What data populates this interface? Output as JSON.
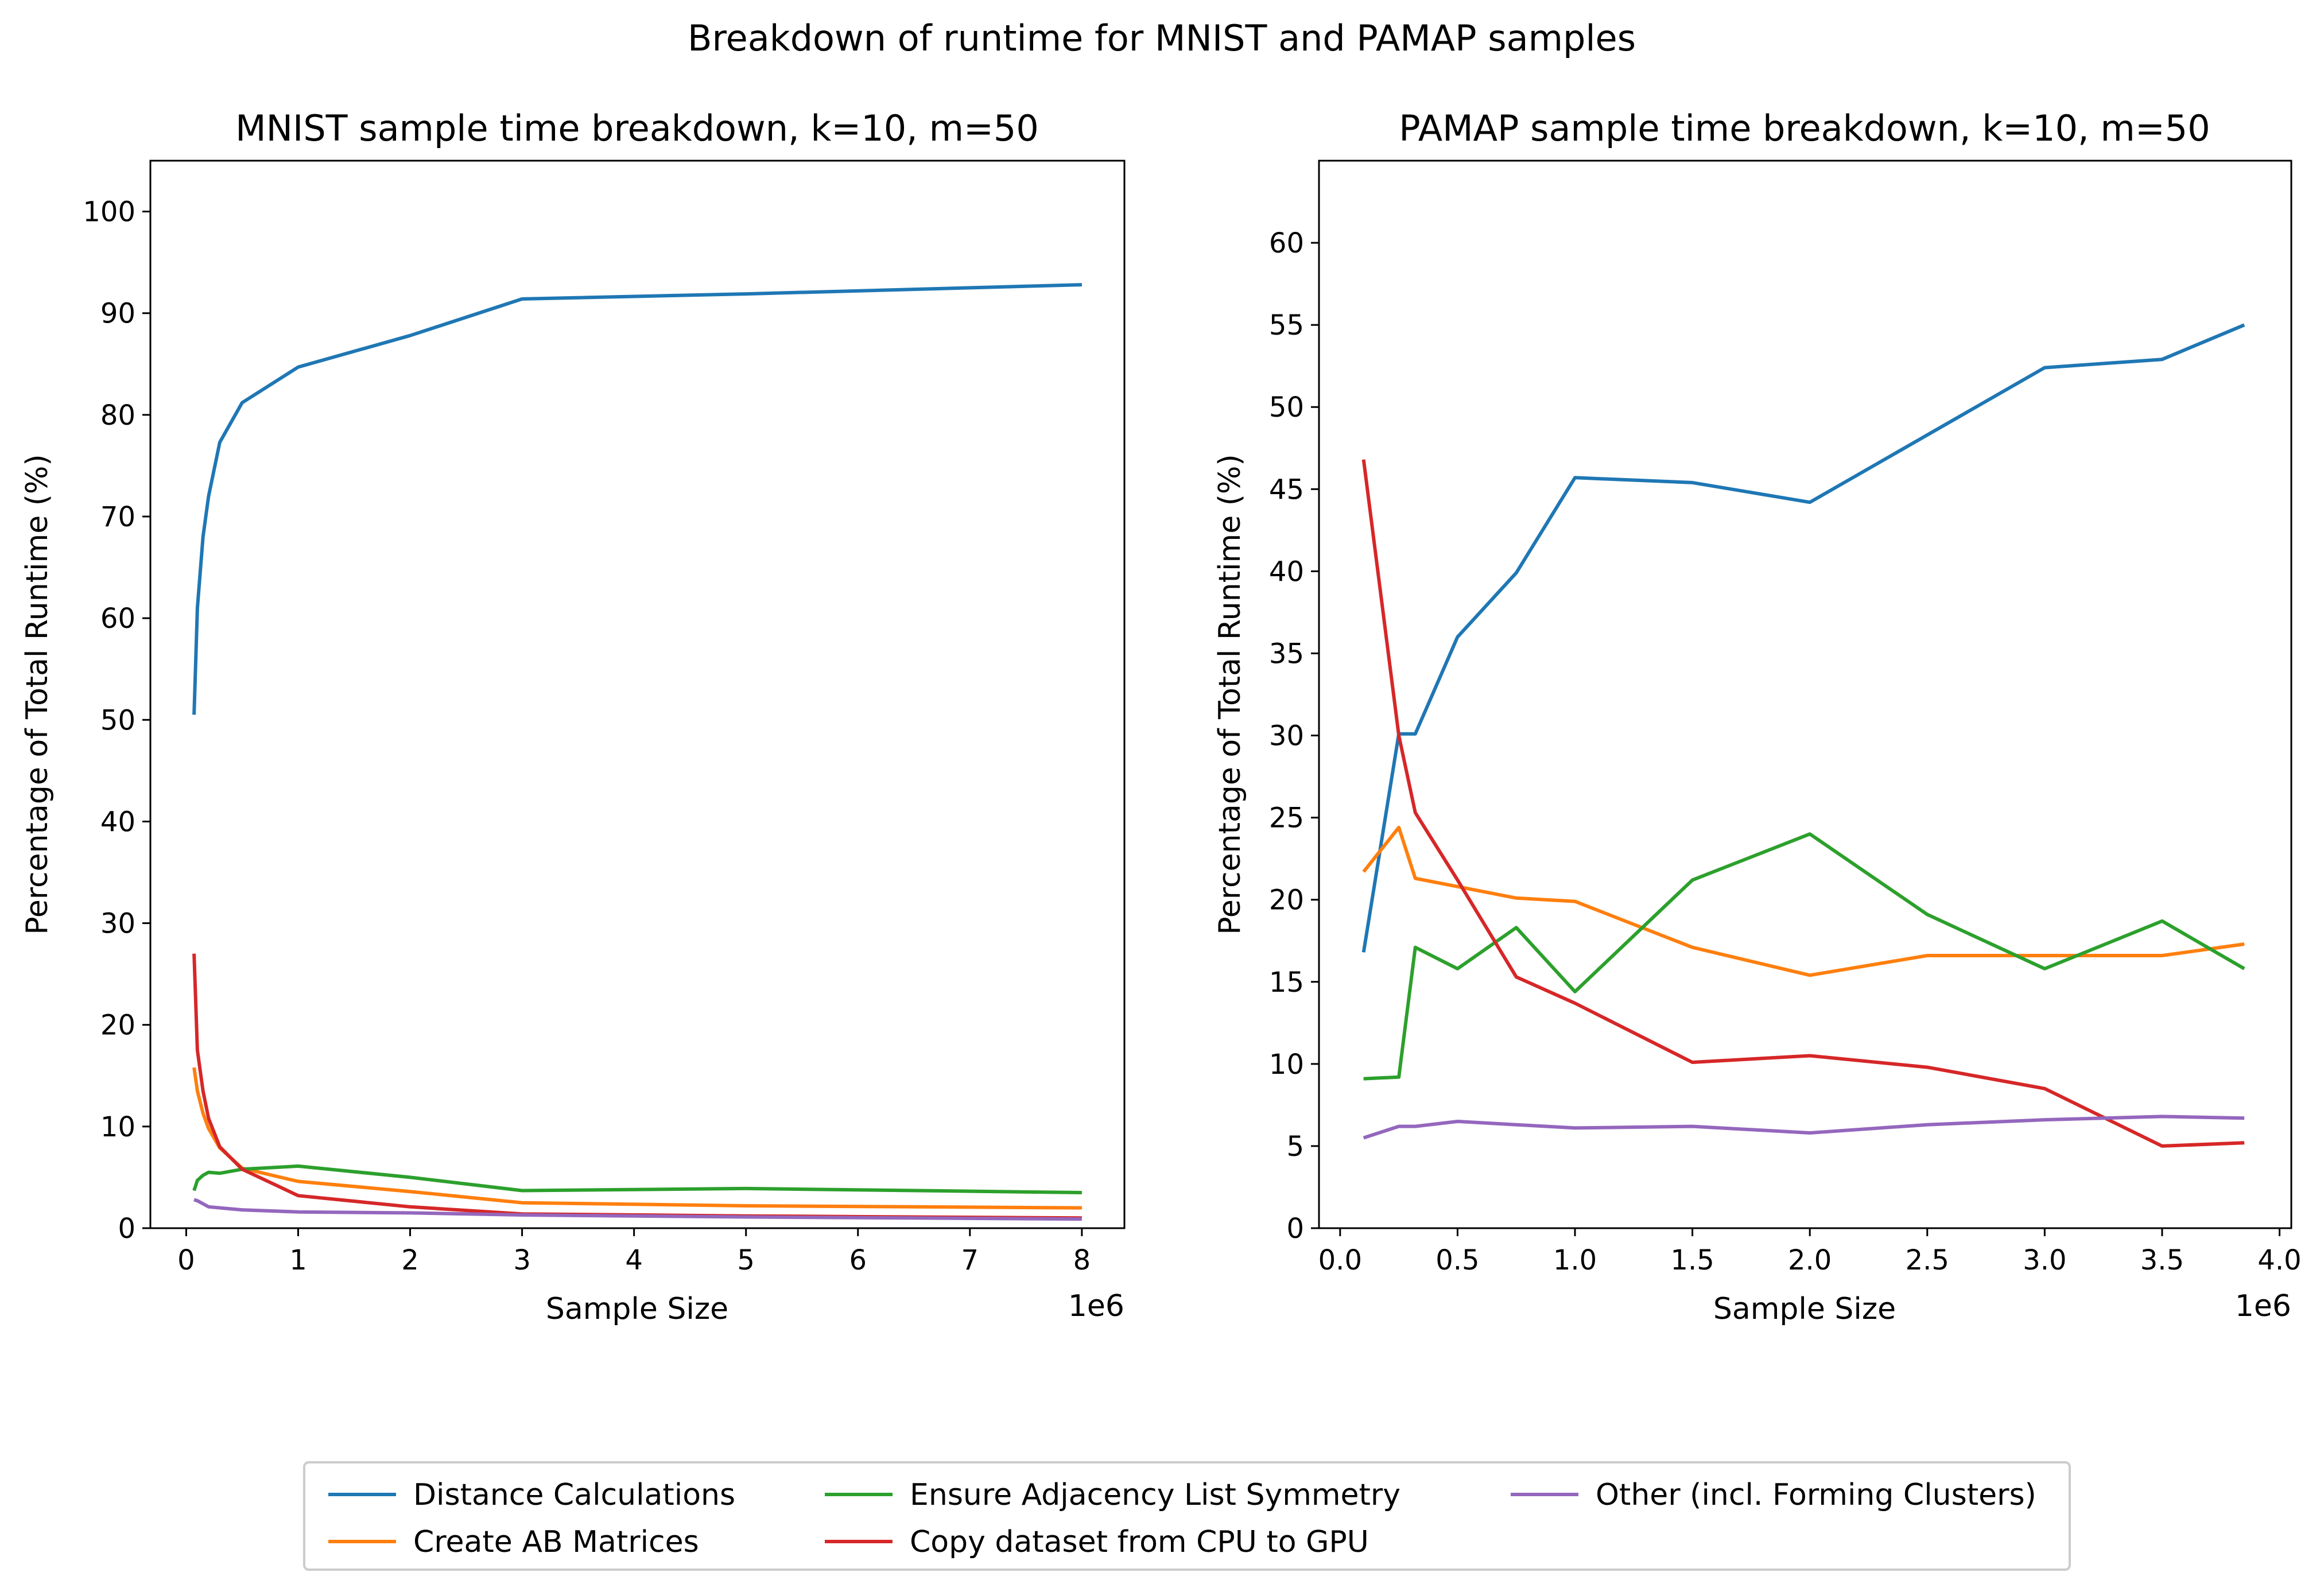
{
  "suptitle": "Breakdown of runtime for MNIST and PAMAP samples",
  "legend": {
    "placement": "bottom-center",
    "entries": [
      {
        "label": "Distance Calculations",
        "color": "#1f77b4"
      },
      {
        "label": "Create AB Matrices",
        "color": "#ff7f0e"
      },
      {
        "label": "Ensure Adjacency List Symmetry",
        "color": "#2ca02c"
      },
      {
        "label": "Copy dataset from CPU to GPU",
        "color": "#d62728"
      },
      {
        "label": "Other (incl. Forming Clusters)",
        "color": "#9467bd"
      }
    ]
  },
  "chart_data": [
    {
      "type": "line",
      "title": "MNIST sample time breakdown, k=10, m=50",
      "xlabel": "Sample Size",
      "ylabel": "Percentage of Total Runtime (%)",
      "x_offset_label": "1e6",
      "xlim": [
        -0.32,
        8.38
      ],
      "ylim": [
        0,
        105
      ],
      "xticks": [
        0,
        1,
        2,
        3,
        4,
        5,
        6,
        7,
        8
      ],
      "xtick_labels": [
        "0",
        "1",
        "2",
        "3",
        "4",
        "5",
        "6",
        "7",
        "8"
      ],
      "yticks": [
        0,
        10,
        20,
        30,
        40,
        50,
        60,
        70,
        80,
        90,
        100
      ],
      "ytick_labels": [
        "0",
        "10",
        "20",
        "30",
        "40",
        "50",
        "60",
        "70",
        "80",
        "90",
        "100"
      ],
      "grid": false,
      "x": [
        0.07,
        0.1,
        0.15,
        0.2,
        0.3,
        0.5,
        1,
        2,
        3,
        5,
        8
      ],
      "series": [
        {
          "name": "Distance Calculations",
          "color": "#1f77b4",
          "values": [
            50.5,
            61,
            68,
            72,
            77.3,
            81.2,
            84.7,
            87.8,
            91.4,
            91.9,
            92.8
          ]
        },
        {
          "name": "Create AB Matrices",
          "color": "#ff7f0e",
          "values": [
            15.8,
            13.5,
            11.3,
            9.8,
            7.9,
            5.9,
            4.6,
            3.6,
            2.5,
            2.2,
            2.0
          ]
        },
        {
          "name": "Ensure Adjacency List Symmetry",
          "color": "#2ca02c",
          "values": [
            3.7,
            4.7,
            5.2,
            5.5,
            5.4,
            5.8,
            6.1,
            5.0,
            3.7,
            3.9,
            3.5
          ]
        },
        {
          "name": "Copy dataset from CPU to GPU",
          "color": "#d62728",
          "values": [
            27.0,
            17.5,
            13.5,
            10.8,
            8.0,
            5.8,
            3.2,
            2.1,
            1.4,
            1.2,
            1.0
          ]
        },
        {
          "name": "Other (incl. Forming Clusters)",
          "color": "#9467bd",
          "values": [
            2.8,
            2.7,
            2.4,
            2.1,
            2.0,
            1.8,
            1.6,
            1.5,
            1.3,
            1.1,
            0.9
          ]
        }
      ]
    },
    {
      "type": "line",
      "title": "PAMAP sample time breakdown, k=10, m=50",
      "xlabel": "Sample Size",
      "ylabel": "Percentage of Total Runtime (%)",
      "x_offset_label": "1e6",
      "xlim": [
        -0.09,
        4.05
      ],
      "ylim": [
        0,
        65
      ],
      "xticks": [
        0.0,
        0.5,
        1.0,
        1.5,
        2.0,
        2.5,
        3.0,
        3.5,
        4.0
      ],
      "xtick_labels": [
        "0.0",
        "0.5",
        "1.0",
        "1.5",
        "2.0",
        "2.5",
        "3.0",
        "3.5",
        "4.0"
      ],
      "yticks": [
        0,
        5,
        10,
        15,
        20,
        25,
        30,
        35,
        40,
        45,
        50,
        55,
        60
      ],
      "ytick_labels": [
        "0",
        "5",
        "10",
        "15",
        "20",
        "25",
        "30",
        "35",
        "40",
        "45",
        "50",
        "55",
        "60"
      ],
      "grid": false,
      "x": [
        0.1,
        0.25,
        0.32,
        0.5,
        0.75,
        1.0,
        1.5,
        2.0,
        2.5,
        3.0,
        3.5,
        3.85
      ],
      "series": [
        {
          "name": "Distance Calculations",
          "color": "#1f77b4",
          "values": [
            16.8,
            30.1,
            30.1,
            36.0,
            39.9,
            45.7,
            45.4,
            44.2,
            48.3,
            52.4,
            52.9,
            55.0
          ]
        },
        {
          "name": "Create AB Matrices",
          "color": "#ff7f0e",
          "values": [
            21.7,
            24.4,
            21.3,
            20.8,
            20.1,
            19.9,
            17.1,
            15.4,
            16.6,
            16.6,
            16.6,
            17.3
          ]
        },
        {
          "name": "Ensure Adjacency List Symmetry",
          "color": "#2ca02c",
          "values": [
            9.1,
            9.2,
            17.1,
            15.8,
            18.3,
            14.4,
            21.2,
            24.0,
            19.1,
            15.8,
            18.7,
            15.8
          ]
        },
        {
          "name": "Copy dataset from CPU to GPU",
          "color": "#d62728",
          "values": [
            46.8,
            30.0,
            25.3,
            21.2,
            15.3,
            13.7,
            10.1,
            10.5,
            9.8,
            8.5,
            5.0,
            5.2
          ]
        },
        {
          "name": "Other (incl. Forming Clusters)",
          "color": "#9467bd",
          "values": [
            5.5,
            6.2,
            6.2,
            6.5,
            6.3,
            6.1,
            6.2,
            5.8,
            6.3,
            6.6,
            6.8,
            6.7
          ]
        }
      ]
    }
  ]
}
